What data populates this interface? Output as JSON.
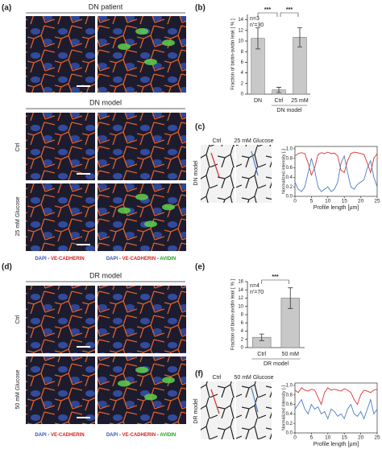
{
  "panel_labels": [
    "(a)",
    "(b)",
    "(c)",
    "(d)",
    "(e)",
    "(f)"
  ],
  "panel_a": {
    "title": "DN patient",
    "subtitle": "DN model",
    "rows": [
      "Ctrl",
      "25 mM Glucose"
    ],
    "captions": [
      [
        "DAPI",
        "-",
        "VE-CADHERIN"
      ],
      [
        "DAPI",
        "-",
        "VE-CADHERIN",
        "-",
        "AVIDIN"
      ]
    ]
  },
  "panel_d": {
    "title": "DR model",
    "rows": [
      "Ctrl",
      "50 mM Glucose"
    ],
    "captions": [
      [
        "DAPI",
        "-",
        "VE-CADHERIN"
      ],
      [
        "DAPI",
        "-",
        "VE-CADHERIN",
        "-",
        "AVIDIN"
      ]
    ]
  },
  "panel_c": {
    "image_labels": [
      "Ctrl",
      "25 mM Glucose"
    ],
    "side_label": "DN model"
  },
  "panel_f": {
    "image_labels": [
      "Ctrl",
      "50 mM Glucose"
    ],
    "side_label": "DR model"
  },
  "chart_data": [
    {
      "type": "bar",
      "ylabel": "Fraction of biotin-avidin leak [ % ]",
      "categories": [
        "DN",
        "Ctrl",
        "25 mM"
      ],
      "values": [
        10.5,
        0.8,
        10.7
      ],
      "errors": [
        2,
        0.5,
        1.8
      ],
      "color": "#c8c8c8",
      "ylim": [
        0,
        15
      ],
      "yticks": [
        0,
        2,
        4,
        6,
        8,
        10,
        12,
        14
      ],
      "annotations": [
        "n=3",
        "n'=30"
      ],
      "group_label": "DN model",
      "group": [
        1,
        2
      ],
      "significance": [
        {
          "from": 0,
          "to": 1,
          "label": "***"
        },
        {
          "from": 1,
          "to": 2,
          "label": "***"
        }
      ]
    },
    {
      "type": "line",
      "ylabel": "Normalized intensity [-]",
      "xlabel": "Profile length [µm]",
      "x": [
        0,
        1,
        2,
        3,
        4,
        5,
        6,
        7,
        8,
        9,
        10,
        11,
        12,
        13,
        14,
        15,
        16,
        17,
        18,
        19,
        20,
        21,
        22,
        23,
        24,
        25
      ],
      "xlim": [
        0,
        25
      ],
      "xticks": [
        0,
        5,
        10,
        15,
        20,
        25
      ],
      "ylim": [
        0,
        1.05
      ],
      "yticks": [
        {
          "value": 0,
          "label": "0.0"
        },
        0.2,
        0.4,
        0.6,
        0.8,
        {
          "value": 1,
          "label": "1.0"
        }
      ],
      "series": [
        {
          "color": "#e03030",
          "values": [
            0.85,
            0.9,
            0.92,
            0.9,
            0.7,
            0.45,
            0.6,
            0.88,
            0.92,
            0.9,
            0.93,
            0.9,
            0.91,
            0.85,
            0.55,
            0.5,
            0.75,
            0.9,
            0.93,
            0.92,
            0.9,
            0.88,
            0.7,
            0.5,
            0.8,
            0.9
          ]
        },
        {
          "color": "#4a7fc0",
          "values": [
            0.3,
            0.15,
            0.1,
            0.2,
            0.5,
            0.8,
            0.55,
            0.2,
            0.1,
            0.15,
            0.2,
            0.1,
            0.15,
            0.3,
            0.7,
            0.85,
            0.5,
            0.2,
            0.15,
            0.25,
            0.3,
            0.35,
            0.6,
            0.75,
            0.4,
            0.2
          ]
        }
      ]
    },
    {
      "type": "bar",
      "ylabel": "Fraction of biotin-avidin leak [ % ]",
      "categories": [
        "Ctrl",
        "50 mM"
      ],
      "values": [
        2.5,
        12
      ],
      "errors": [
        0.8,
        2.5
      ],
      "color": "#c8c8c8",
      "ylim": [
        0,
        16
      ],
      "yticks": [
        0,
        2,
        4,
        6,
        8,
        10,
        12,
        14,
        16
      ],
      "annotations": [
        "n=4",
        "n'=70"
      ],
      "group_label": "DR model",
      "group": [
        0,
        1
      ],
      "significance": [
        {
          "from": 0,
          "to": 1,
          "label": "***"
        }
      ]
    },
    {
      "type": "line",
      "ylabel": "Normalized intensity [-]",
      "xlabel": "Profile length [µm]",
      "x": [
        0,
        1,
        2,
        3,
        4,
        5,
        6,
        7,
        8,
        9,
        10,
        11,
        12,
        13,
        14,
        15,
        16,
        17,
        18,
        19,
        20,
        21,
        22,
        23,
        24,
        25
      ],
      "xlim": [
        0,
        25
      ],
      "xticks": [
        0,
        5,
        10,
        15,
        20,
        25
      ],
      "ylim": [
        0,
        1.05
      ],
      "yticks": [
        {
          "value": 0,
          "label": "0.0"
        },
        0.2,
        0.4,
        0.6,
        0.8,
        {
          "value": 1,
          "label": "1.0"
        }
      ],
      "series": [
        {
          "color": "#e03030",
          "values": [
            0.9,
            0.85,
            0.95,
            0.9,
            0.88,
            0.92,
            0.9,
            0.75,
            0.6,
            0.85,
            0.95,
            0.9,
            0.92,
            0.9,
            0.88,
            0.93,
            0.9,
            0.85,
            0.7,
            0.6,
            0.8,
            0.9,
            0.88,
            0.85,
            0.9,
            0.92
          ]
        },
        {
          "color": "#4a7fc0",
          "values": [
            0.5,
            0.6,
            0.7,
            0.5,
            0.4,
            0.6,
            0.5,
            0.55,
            0.4,
            0.45,
            0.3,
            0.5,
            0.45,
            0.35,
            0.4,
            0.3,
            0.5,
            0.6,
            0.4,
            0.35,
            0.45,
            0.3,
            0.5,
            0.7,
            0.4,
            0.5
          ]
        }
      ]
    }
  ]
}
